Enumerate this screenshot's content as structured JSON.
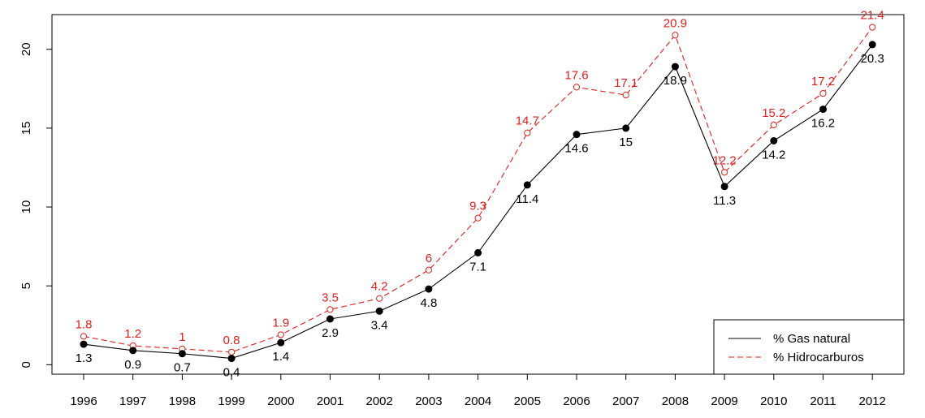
{
  "chart_data": {
    "type": "line",
    "title": "",
    "xlabel": "",
    "ylabel": "",
    "categories": [
      "1996",
      "1997",
      "1998",
      "1999",
      "2000",
      "2001",
      "2002",
      "2003",
      "2004",
      "2005",
      "2006",
      "2007",
      "2008",
      "2009",
      "2010",
      "2011",
      "2012"
    ],
    "ylim": [
      -0.6,
      22.2
    ],
    "yticks": [
      0,
      5,
      10,
      15,
      20
    ],
    "grid": false,
    "legend_position": "bottom-right",
    "series": [
      {
        "name": "% Gas natural",
        "color": "#000000",
        "line_style": "solid",
        "marker": "filled-circle",
        "label_position": "below",
        "values": [
          1.3,
          0.9,
          0.7,
          0.4,
          1.4,
          2.9,
          3.4,
          4.8,
          7.1,
          11.4,
          14.6,
          15,
          18.9,
          11.3,
          14.2,
          16.2,
          20.3
        ],
        "labels": [
          "1.3",
          "0.9",
          "0.7",
          "0.4",
          "1.4",
          "2.9",
          "3.4",
          "4.8",
          "7.1",
          "11.4",
          "14.6",
          "15",
          "18.9",
          "11.3",
          "14.2",
          "16.2",
          "20.3"
        ]
      },
      {
        "name": "% Hidrocarburos",
        "color": "#e0201c",
        "line_style": "dashed",
        "marker": "open-circle",
        "label_position": "above",
        "values": [
          1.8,
          1.2,
          1,
          0.8,
          1.9,
          3.5,
          4.2,
          6,
          9.3,
          14.7,
          17.6,
          17.1,
          20.9,
          12.2,
          15.2,
          17.2,
          21.4
        ],
        "labels": [
          "1.8",
          "1.2",
          "1",
          "0.8",
          "1.9",
          "3.5",
          "4.2",
          "6",
          "9.3",
          "14.7",
          "17.6",
          "17.1",
          "20.9",
          "12.2",
          "15.2",
          "17.2",
          "21.4"
        ]
      }
    ]
  }
}
